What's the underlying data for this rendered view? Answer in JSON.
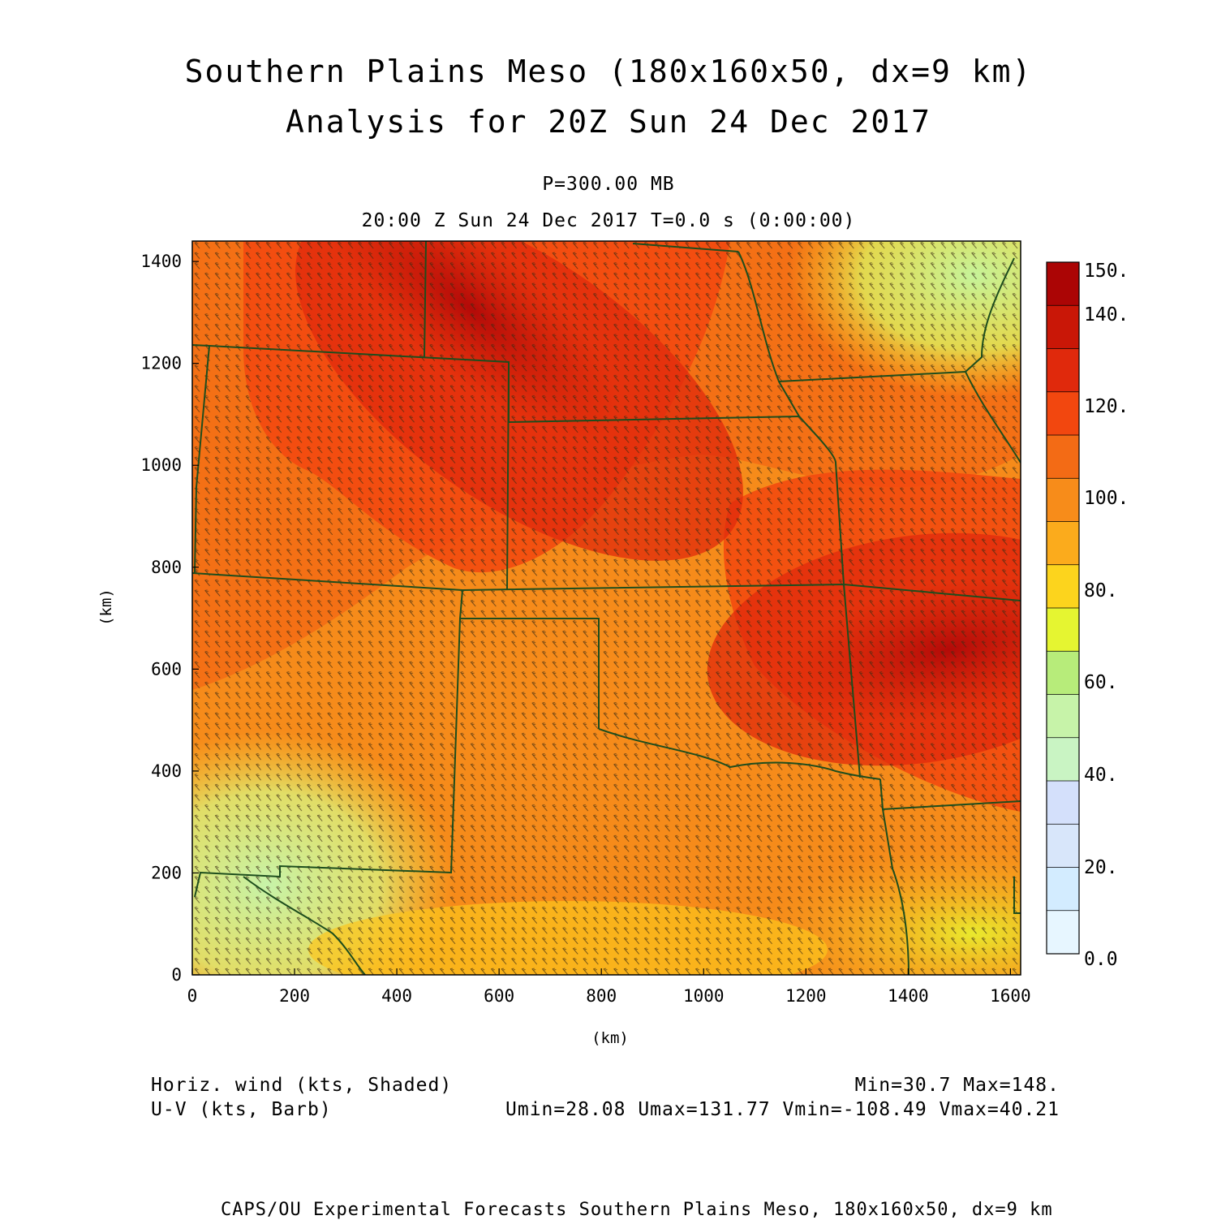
{
  "title_line1": "Southern Plains Meso (180x160x50, dx=9 km)",
  "title_line2": "Analysis for 20Z Sun 24 Dec 2017",
  "level": "P=300.00 MB",
  "time_line": "20:00 Z Sun 24 Dec 2017   T=0.0 s (0:00:00)",
  "axes": {
    "x_label": "(km)",
    "y_label": "(km)",
    "x_range": [
      0,
      1620
    ],
    "y_range": [
      0,
      1440
    ],
    "x_ticks": [
      "0",
      "200",
      "400",
      "600",
      "800",
      "1000",
      "1200",
      "1400",
      "1600"
    ],
    "y_ticks": [
      "0",
      "200",
      "400",
      "600",
      "800",
      "1000",
      "1200",
      "1400"
    ]
  },
  "colorbar": {
    "labels": [
      "150.",
      "140.",
      "120.",
      "100.",
      "80.",
      "60.",
      "40.",
      "20.",
      "0.0"
    ],
    "colors": [
      "#e7f6ff",
      "#d3ecff",
      "#d8e6fa",
      "#d4e0fb",
      "#c9f4c3",
      "#c7f3a9",
      "#b7ec7a",
      "#e5f531",
      "#fcd41d",
      "#fbab1c",
      "#f78c1a",
      "#f36b15",
      "#f2470f",
      "#e0290c",
      "#c91707",
      "#ab0505"
    ]
  },
  "legend": {
    "shaded": "Horiz. wind (kts, Shaded)",
    "barb": "U-V (kts, Barb)",
    "minmax": "Min=30.7  Max=148.",
    "uv_stats": "Umin=28.08 Umax=131.77 Vmin=-108.49 Vmax=40.21"
  },
  "footer": "CAPS/OU Experimental Forecasts  Southern Plains Meso, 180x160x50, dx=9 km"
}
